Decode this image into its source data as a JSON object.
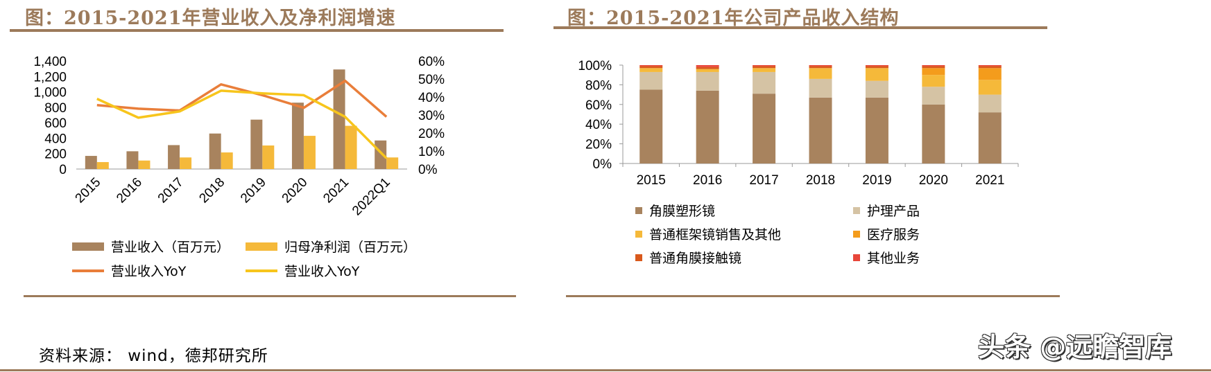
{
  "left_panel": {
    "title": "图：2015-2021年营业收入及净利润增速"
  },
  "right_panel": {
    "title": "图：2015-2021年公司产品收入结构"
  },
  "source": "资料来源： wind，德邦研究所",
  "watermark": "头条 @远瞻智库",
  "colors": {
    "brown": "#a8835e",
    "gold": "#f5b93a",
    "orange_line": "#e97e3a",
    "yellow_line": "#f7c51c",
    "beige": "#d5c3a4",
    "amber": "#f49c1c",
    "dark_orange": "#d9591c",
    "red": "#e8463a",
    "rule": "#9c7a5a"
  },
  "chart_data": [
    {
      "type": "bar",
      "categories": [
        "2015",
        "2016",
        "2017",
        "2018",
        "2019",
        "2020",
        "2021",
        "2022Q1"
      ],
      "series": [
        {
          "name": "营业收入（百万元）",
          "kind": "bar",
          "axis": "left",
          "color": "#a8835e",
          "values": [
            170,
            230,
            310,
            460,
            640,
            860,
            1290,
            370
          ]
        },
        {
          "name": "归母净利润（百万元）",
          "kind": "bar",
          "axis": "left",
          "color": "#f5b93a",
          "values": [
            90,
            110,
            150,
            215,
            305,
            430,
            560,
            150
          ]
        },
        {
          "name": "营业收入YoY",
          "kind": "line",
          "axis": "right",
          "color": "#e97e3a",
          "values": [
            0.355,
            0.335,
            0.325,
            0.47,
            0.41,
            0.34,
            0.49,
            0.29
          ]
        },
        {
          "name": "营业收入YoY",
          "kind": "line",
          "axis": "right",
          "color": "#f7c51c",
          "values": [
            0.39,
            0.285,
            0.32,
            0.435,
            0.42,
            0.41,
            0.29,
            0.06
          ]
        }
      ],
      "y_left": {
        "ylim": [
          0,
          1400
        ],
        "ticks": [
          "0",
          "200",
          "400",
          "600",
          "800",
          "1,000",
          "1,200",
          "1,400"
        ]
      },
      "y_right": {
        "ylim": [
          0,
          0.6
        ],
        "ticks": [
          "0%",
          "10%",
          "20%",
          "30%",
          "40%",
          "50%",
          "60%"
        ]
      },
      "legend_position": "bottom",
      "grid": false
    },
    {
      "type": "bar",
      "stacked": true,
      "categories": [
        "2015",
        "2016",
        "2017",
        "2018",
        "2019",
        "2020",
        "2021"
      ],
      "series": [
        {
          "name": "角膜塑形镜",
          "color": "#a8835e",
          "values": [
            0.75,
            0.74,
            0.71,
            0.67,
            0.67,
            0.6,
            0.52
          ]
        },
        {
          "name": "护理产品",
          "color": "#d5c3a4",
          "values": [
            0.18,
            0.19,
            0.22,
            0.19,
            0.17,
            0.18,
            0.18
          ]
        },
        {
          "name": "普通框架镜销售及其他",
          "color": "#f5b93a",
          "values": [
            0.04,
            0.03,
            0.04,
            0.11,
            0.13,
            0.12,
            0.15
          ]
        },
        {
          "name": "医疗服务",
          "color": "#f49c1c",
          "values": [
            0.0,
            0.0,
            0.0,
            0.0,
            0.0,
            0.07,
            0.12
          ]
        },
        {
          "name": "普通角膜接触镜",
          "color": "#d9591c",
          "values": [
            0.02,
            0.02,
            0.02,
            0.02,
            0.02,
            0.02,
            0.02
          ]
        },
        {
          "name": "其他业务",
          "color": "#e8463a",
          "values": [
            0.01,
            0.02,
            0.01,
            0.01,
            0.01,
            0.01,
            0.01
          ]
        }
      ],
      "ylim": [
        0,
        1
      ],
      "ticks": [
        "0%",
        "20%",
        "40%",
        "60%",
        "80%",
        "100%"
      ],
      "legend_position": "bottom",
      "grid": false
    }
  ]
}
